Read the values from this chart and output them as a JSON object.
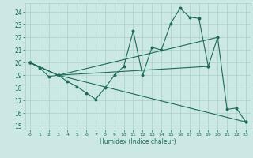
{
  "title": "",
  "xlabel": "Humidex (Indice chaleur)",
  "ylabel": "",
  "bg_color": "#cce8e4",
  "grid_color": "#aacfcc",
  "line_color": "#1a6b5a",
  "xlim": [
    -0.5,
    23.5
  ],
  "ylim": [
    14.7,
    24.7
  ],
  "yticks": [
    15,
    16,
    17,
    18,
    19,
    20,
    21,
    22,
    23,
    24
  ],
  "xticks": [
    0,
    1,
    2,
    3,
    4,
    5,
    6,
    7,
    8,
    9,
    10,
    11,
    12,
    13,
    14,
    15,
    16,
    17,
    18,
    19,
    20,
    21,
    22,
    23
  ],
  "line1": [
    [
      0,
      20.0
    ],
    [
      1,
      19.6
    ],
    [
      2,
      18.9
    ],
    [
      3,
      19.0
    ],
    [
      4,
      18.5
    ],
    [
      5,
      18.1
    ],
    [
      6,
      17.6
    ],
    [
      7,
      17.1
    ],
    [
      8,
      18.0
    ],
    [
      9,
      19.0
    ],
    [
      10,
      19.7
    ],
    [
      11,
      22.5
    ],
    [
      12,
      19.0
    ],
    [
      13,
      21.2
    ],
    [
      14,
      21.0
    ],
    [
      15,
      23.1
    ],
    [
      16,
      24.3
    ],
    [
      17,
      23.6
    ],
    [
      18,
      23.5
    ],
    [
      19,
      19.7
    ],
    [
      20,
      22.0
    ],
    [
      21,
      16.3
    ],
    [
      22,
      16.4
    ],
    [
      23,
      15.3
    ]
  ],
  "line2": [
    [
      0,
      20.0
    ],
    [
      3,
      19.0
    ],
    [
      20,
      22.0
    ]
  ],
  "line3": [
    [
      0,
      20.0
    ],
    [
      3,
      19.0
    ],
    [
      19,
      19.7
    ]
  ],
  "line4": [
    [
      0,
      20.0
    ],
    [
      3,
      19.0
    ],
    [
      23,
      15.3
    ]
  ]
}
